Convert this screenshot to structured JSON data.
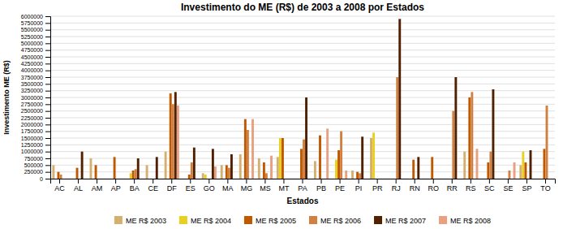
{
  "chart_data": {
    "type": "bar",
    "title": "Investimento do ME (R$) de 2003 a 2008 por Estados",
    "xlabel": "Estados",
    "ylabel": "Investimento ME (R$)",
    "categories": [
      "AC",
      "AL",
      "AM",
      "AP",
      "BA",
      "CE",
      "DF",
      "ES",
      "GO",
      "MA",
      "MG",
      "MS",
      "MT",
      "PA",
      "PB",
      "PE",
      "PI",
      "PR",
      "RJ",
      "RN",
      "RO",
      "RR",
      "RS",
      "SC",
      "SE",
      "SP",
      "TO"
    ],
    "series": [
      {
        "name": "ME R$ 2003",
        "color": "#D4B070",
        "values": [
          500000,
          0,
          750000,
          0,
          0,
          500000,
          1000000,
          0,
          200000,
          500000,
          900000,
          750000,
          800000,
          0,
          650000,
          0,
          300000,
          1500000,
          0,
          0,
          0,
          0,
          1000000,
          0,
          0,
          500000,
          0
        ]
      },
      {
        "name": "ME R$ 2004",
        "color": "#E8D020",
        "values": [
          0,
          0,
          0,
          0,
          200000,
          0,
          0,
          0,
          150000,
          0,
          0,
          0,
          1500000,
          0,
          0,
          700000,
          0,
          1700000,
          0,
          0,
          0,
          0,
          0,
          0,
          0,
          1000000,
          0
        ]
      },
      {
        "name": "ME R$ 2005",
        "color": "#C05800",
        "values": [
          250000,
          400000,
          500000,
          800000,
          300000,
          0,
          3150000,
          150000,
          0,
          500000,
          2200000,
          600000,
          1500000,
          1100000,
          1600000,
          1050000,
          250000,
          0,
          0,
          700000,
          800000,
          0,
          3000000,
          600000,
          0,
          600000,
          1100000
        ]
      },
      {
        "name": "ME R$ 2006",
        "color": "#D08040",
        "values": [
          150000,
          0,
          0,
          0,
          350000,
          0,
          2750000,
          600000,
          0,
          400000,
          1800000,
          200000,
          0,
          1450000,
          0,
          1750000,
          200000,
          0,
          3750000,
          0,
          0,
          2500000,
          3200000,
          1000000,
          300000,
          0,
          2700000
        ]
      },
      {
        "name": "ME R$ 2007",
        "color": "#502000",
        "values": [
          0,
          1000000,
          0,
          0,
          750000,
          800000,
          3200000,
          1150000,
          1100000,
          900000,
          0,
          0,
          0,
          3000000,
          0,
          0,
          1550000,
          0,
          5900000,
          800000,
          0,
          3750000,
          0,
          3300000,
          0,
          1050000,
          0
        ]
      },
      {
        "name": "ME R$ 2008",
        "color": "#E8A080",
        "values": [
          0,
          0,
          0,
          0,
          0,
          0,
          2700000,
          0,
          450000,
          0,
          2200000,
          850000,
          0,
          0,
          1850000,
          300000,
          0,
          0,
          0,
          0,
          0,
          0,
          1100000,
          0,
          600000,
          0,
          0
        ]
      }
    ],
    "ylim": [
      0,
      6000000
    ],
    "yticks": [
      0,
      250000,
      500000,
      750000,
      1000000,
      1250000,
      1500000,
      1750000,
      2000000,
      2250000,
      2500000,
      2750000,
      3000000,
      3250000,
      3500000,
      3750000,
      4000000,
      4250000,
      4500000,
      4750000,
      5000000,
      5250000,
      5500000,
      5750000,
      6000000
    ],
    "grid": true,
    "legend": "bottom"
  }
}
